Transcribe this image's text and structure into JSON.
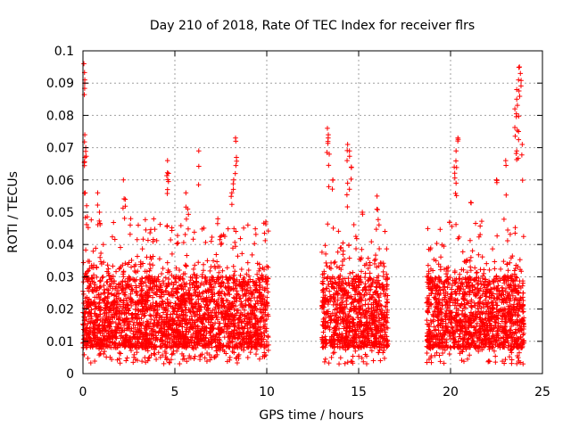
{
  "chart_data": {
    "type": "scatter",
    "title": "Day 210 of 2018, Rate Of TEC Index for receiver flrs",
    "xlabel": "GPS time / hours",
    "ylabel": "ROTI / TECUs",
    "xlim": [
      0,
      25
    ],
    "ylim": [
      0,
      0.1
    ],
    "x_ticks": [
      0,
      5,
      10,
      15,
      20,
      25
    ],
    "y_ticks": [
      0,
      0.01,
      0.02,
      0.03,
      0.04,
      0.05,
      0.06,
      0.07,
      0.08,
      0.09,
      0.1
    ],
    "x_tick_labels": [
      "0",
      "5",
      "10",
      "15",
      "20",
      "25"
    ],
    "y_tick_labels": [
      "0",
      "0.01",
      "0.02",
      "0.03",
      "0.04",
      "0.05",
      "0.06",
      "0.07",
      "0.08",
      "0.09",
      "0.1"
    ],
    "grid": true,
    "marker": "+",
    "marker_color": "#ff0000",
    "series": [
      {
        "name": "ROTI",
        "segments": [
          {
            "x_range": [
              0.0,
              10.1
            ],
            "typical_range": [
              0.003,
              0.035
            ]
          },
          {
            "x_range": [
              13.0,
              16.6
            ],
            "typical_range": [
              0.003,
              0.035
            ]
          },
          {
            "x_range": [
              18.7,
              24.0
            ],
            "typical_range": [
              0.003,
              0.035
            ]
          }
        ],
        "peaks": [
          {
            "x": 0.05,
            "y": 0.096
          },
          {
            "x": 0.1,
            "y": 0.091
          },
          {
            "x": 0.1,
            "y": 0.074
          },
          {
            "x": 0.15,
            "y": 0.07
          },
          {
            "x": 0.1,
            "y": 0.067
          },
          {
            "x": 0.12,
            "y": 0.056
          },
          {
            "x": 0.2,
            "y": 0.052
          },
          {
            "x": 0.8,
            "y": 0.056
          },
          {
            "x": 0.9,
            "y": 0.05
          },
          {
            "x": 2.2,
            "y": 0.06
          },
          {
            "x": 2.3,
            "y": 0.054
          },
          {
            "x": 2.6,
            "y": 0.048
          },
          {
            "x": 4.6,
            "y": 0.066
          },
          {
            "x": 4.65,
            "y": 0.062
          },
          {
            "x": 4.6,
            "y": 0.057
          },
          {
            "x": 5.6,
            "y": 0.056
          },
          {
            "x": 5.7,
            "y": 0.051
          },
          {
            "x": 6.3,
            "y": 0.069
          },
          {
            "x": 8.3,
            "y": 0.073
          },
          {
            "x": 8.35,
            "y": 0.067
          },
          {
            "x": 8.2,
            "y": 0.06
          },
          {
            "x": 8.1,
            "y": 0.056
          },
          {
            "x": 9.95,
            "y": 0.047
          },
          {
            "x": 13.3,
            "y": 0.076
          },
          {
            "x": 13.35,
            "y": 0.074
          },
          {
            "x": 13.4,
            "y": 0.068
          },
          {
            "x": 13.6,
            "y": 0.06
          },
          {
            "x": 14.4,
            "y": 0.071
          },
          {
            "x": 14.5,
            "y": 0.069
          },
          {
            "x": 14.6,
            "y": 0.064
          },
          {
            "x": 14.4,
            "y": 0.059
          },
          {
            "x": 15.2,
            "y": 0.05
          },
          {
            "x": 16.0,
            "y": 0.055
          },
          {
            "x": 20.4,
            "y": 0.073
          },
          {
            "x": 20.3,
            "y": 0.069
          },
          {
            "x": 20.2,
            "y": 0.064
          },
          {
            "x": 20.3,
            "y": 0.059
          },
          {
            "x": 21.1,
            "y": 0.053
          },
          {
            "x": 22.5,
            "y": 0.06
          },
          {
            "x": 23.0,
            "y": 0.066
          },
          {
            "x": 23.5,
            "y": 0.082
          },
          {
            "x": 23.6,
            "y": 0.085
          },
          {
            "x": 23.6,
            "y": 0.088
          },
          {
            "x": 23.7,
            "y": 0.091
          },
          {
            "x": 23.75,
            "y": 0.095
          },
          {
            "x": 23.8,
            "y": 0.093
          },
          {
            "x": 23.7,
            "y": 0.075
          },
          {
            "x": 23.9,
            "y": 0.071
          },
          {
            "x": 23.6,
            "y": 0.069
          }
        ]
      }
    ]
  }
}
